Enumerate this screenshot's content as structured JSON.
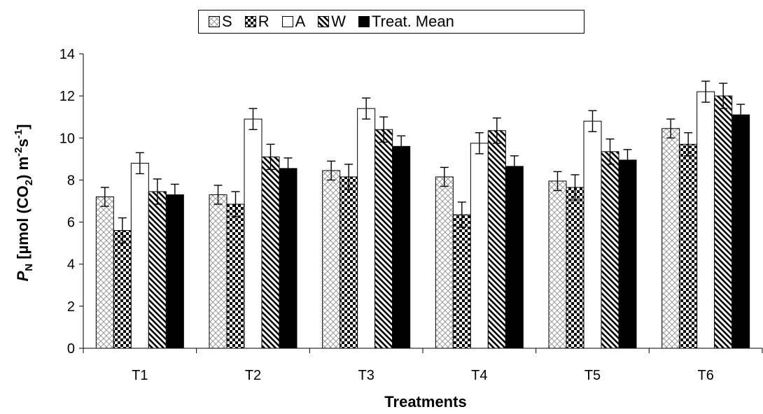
{
  "chart_data": {
    "type": "bar",
    "title": "",
    "xlabel": "Treatments",
    "ylabel": {
      "main": "P",
      "main_sub": "N",
      "unit_open": " [µmol (CO",
      "unit_sub": "2",
      "unit_mid": ") m",
      "exp1": "-2",
      "unit_s": "s",
      "exp2": "-1",
      "unit_close": "]"
    },
    "ylim": [
      0,
      14
    ],
    "yticks": [
      0,
      2,
      4,
      6,
      8,
      10,
      12,
      14
    ],
    "grid": false,
    "legend_position": "top-center",
    "categories": [
      "T1",
      "T2",
      "T3",
      "T4",
      "T5",
      "T6"
    ],
    "series": [
      {
        "name": "S",
        "pattern": "crosshatch",
        "values": [
          7.2,
          7.3,
          8.45,
          8.15,
          7.95,
          10.45
        ],
        "errors": [
          0.45,
          0.45,
          0.45,
          0.45,
          0.45,
          0.45
        ]
      },
      {
        "name": "R",
        "pattern": "checker",
        "values": [
          5.6,
          6.85,
          8.15,
          6.35,
          7.65,
          9.7
        ],
        "errors": [
          0.6,
          0.6,
          0.6,
          0.6,
          0.6,
          0.55
        ]
      },
      {
        "name": "A",
        "pattern": "white",
        "values": [
          8.8,
          10.9,
          11.4,
          9.75,
          10.8,
          12.2
        ],
        "errors": [
          0.5,
          0.5,
          0.5,
          0.5,
          0.5,
          0.5
        ]
      },
      {
        "name": "W",
        "pattern": "diagonal",
        "values": [
          7.45,
          9.1,
          10.4,
          10.35,
          9.35,
          12.0
        ],
        "errors": [
          0.6,
          0.6,
          0.6,
          0.6,
          0.6,
          0.6
        ]
      },
      {
        "name": "Treat. Mean",
        "pattern": "black",
        "values": [
          7.3,
          8.55,
          9.6,
          8.65,
          8.95,
          11.1
        ],
        "errors": [
          0.5,
          0.5,
          0.5,
          0.5,
          0.5,
          0.5
        ]
      }
    ]
  }
}
